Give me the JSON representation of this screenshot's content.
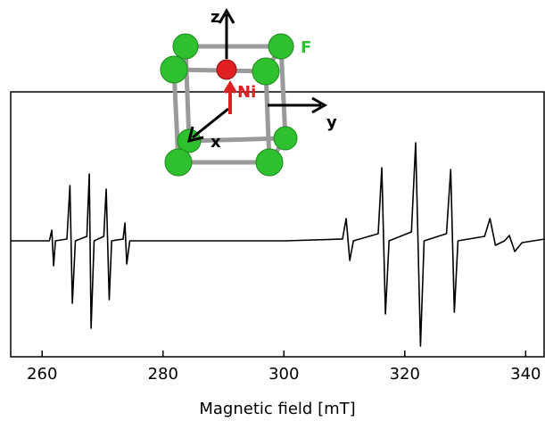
{
  "chart_data": {
    "type": "line",
    "xlabel": "Magnetic field [mT]",
    "annotations": [
      "z",
      "F",
      "Ni",
      "y",
      "x"
    ],
    "x": [
      254.8,
      261.2,
      261.6,
      261.9,
      262.2,
      264.1,
      264.6,
      265.0,
      265.5,
      267.4,
      267.8,
      268.1,
      268.6,
      270.2,
      270.6,
      271.1,
      271.5,
      273.4,
      273.7,
      274.0,
      274.5,
      300.3,
      309.7,
      310.3,
      310.9,
      311.5,
      315.6,
      316.2,
      316.8,
      317.4,
      321.1,
      321.8,
      322.6,
      323.2,
      326.9,
      327.6,
      328.2,
      328.8,
      333.2,
      334.1,
      335.0,
      336.5,
      337.3,
      338.2,
      339.4,
      343.2
    ],
    "values": [
      0,
      0,
      12,
      -28,
      0,
      2,
      62,
      -70,
      0,
      5,
      75,
      -98,
      0,
      5,
      58,
      -66,
      0,
      2,
      20,
      -26,
      0,
      0,
      2,
      25,
      -22,
      0,
      8,
      82,
      -82,
      0,
      10,
      110,
      -118,
      0,
      8,
      80,
      -80,
      0,
      5,
      25,
      -5,
      0,
      6,
      -12,
      -2,
      2
    ],
    "color": "#000000",
    "xlim": [
      254.8,
      343.2
    ],
    "ylim": [
      -130,
      167
    ],
    "xticks": [
      260,
      280,
      300,
      320,
      340
    ]
  }
}
